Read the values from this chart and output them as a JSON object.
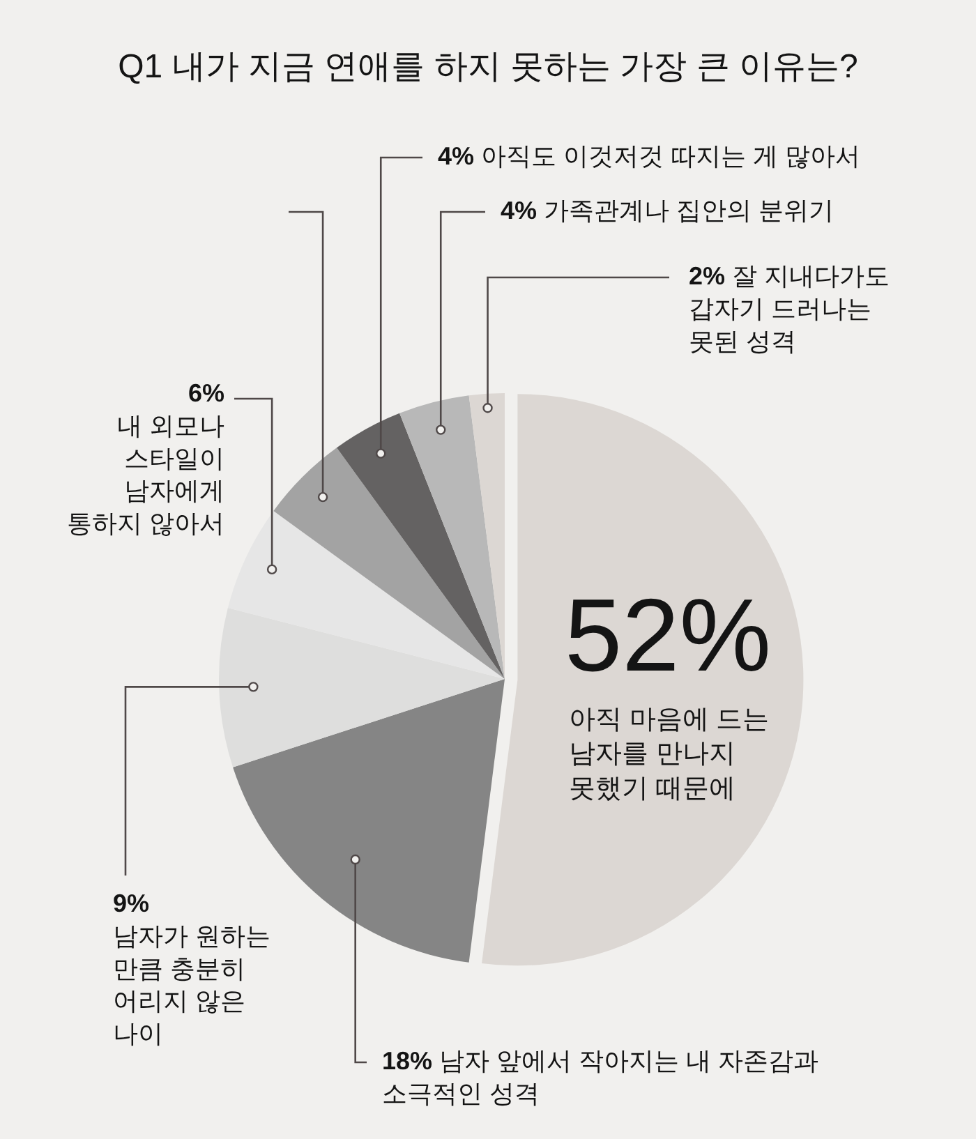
{
  "chart_data": {
    "type": "pie",
    "title": "Q1 내가 지금 연애를 하지 못하는 가장 큰 이유는?",
    "categories": [
      "아직 마음에 드는\n남자를 만나지\n못했기 때문에",
      "남자 앞에서 작아지는 내 자존감과\n소극적인 성격",
      "남자가 원하는\n만큼 충분히\n어리지 않은\n나이",
      "내 외모나\n스타일이\n남자에게\n통하지 않아서",
      null,
      "아직도 이것저것 따지는 게 많아서",
      "가족관계나 집안의 분위기",
      "잘 지내다가도\n갑자기 드러나는\n못된 성격"
    ],
    "values": [
      52,
      18,
      9,
      6,
      5,
      4,
      4,
      2
    ],
    "value_labels": [
      "52%",
      "18%",
      "9%",
      "6%",
      null,
      "4%",
      "4%",
      "2%"
    ],
    "colors": [
      "#dcd7d3",
      "#858585",
      "#dededd",
      "#e6e6e6",
      "#a3a3a3",
      "#646262",
      "#b8b8b8",
      "#dcd7d3"
    ]
  }
}
